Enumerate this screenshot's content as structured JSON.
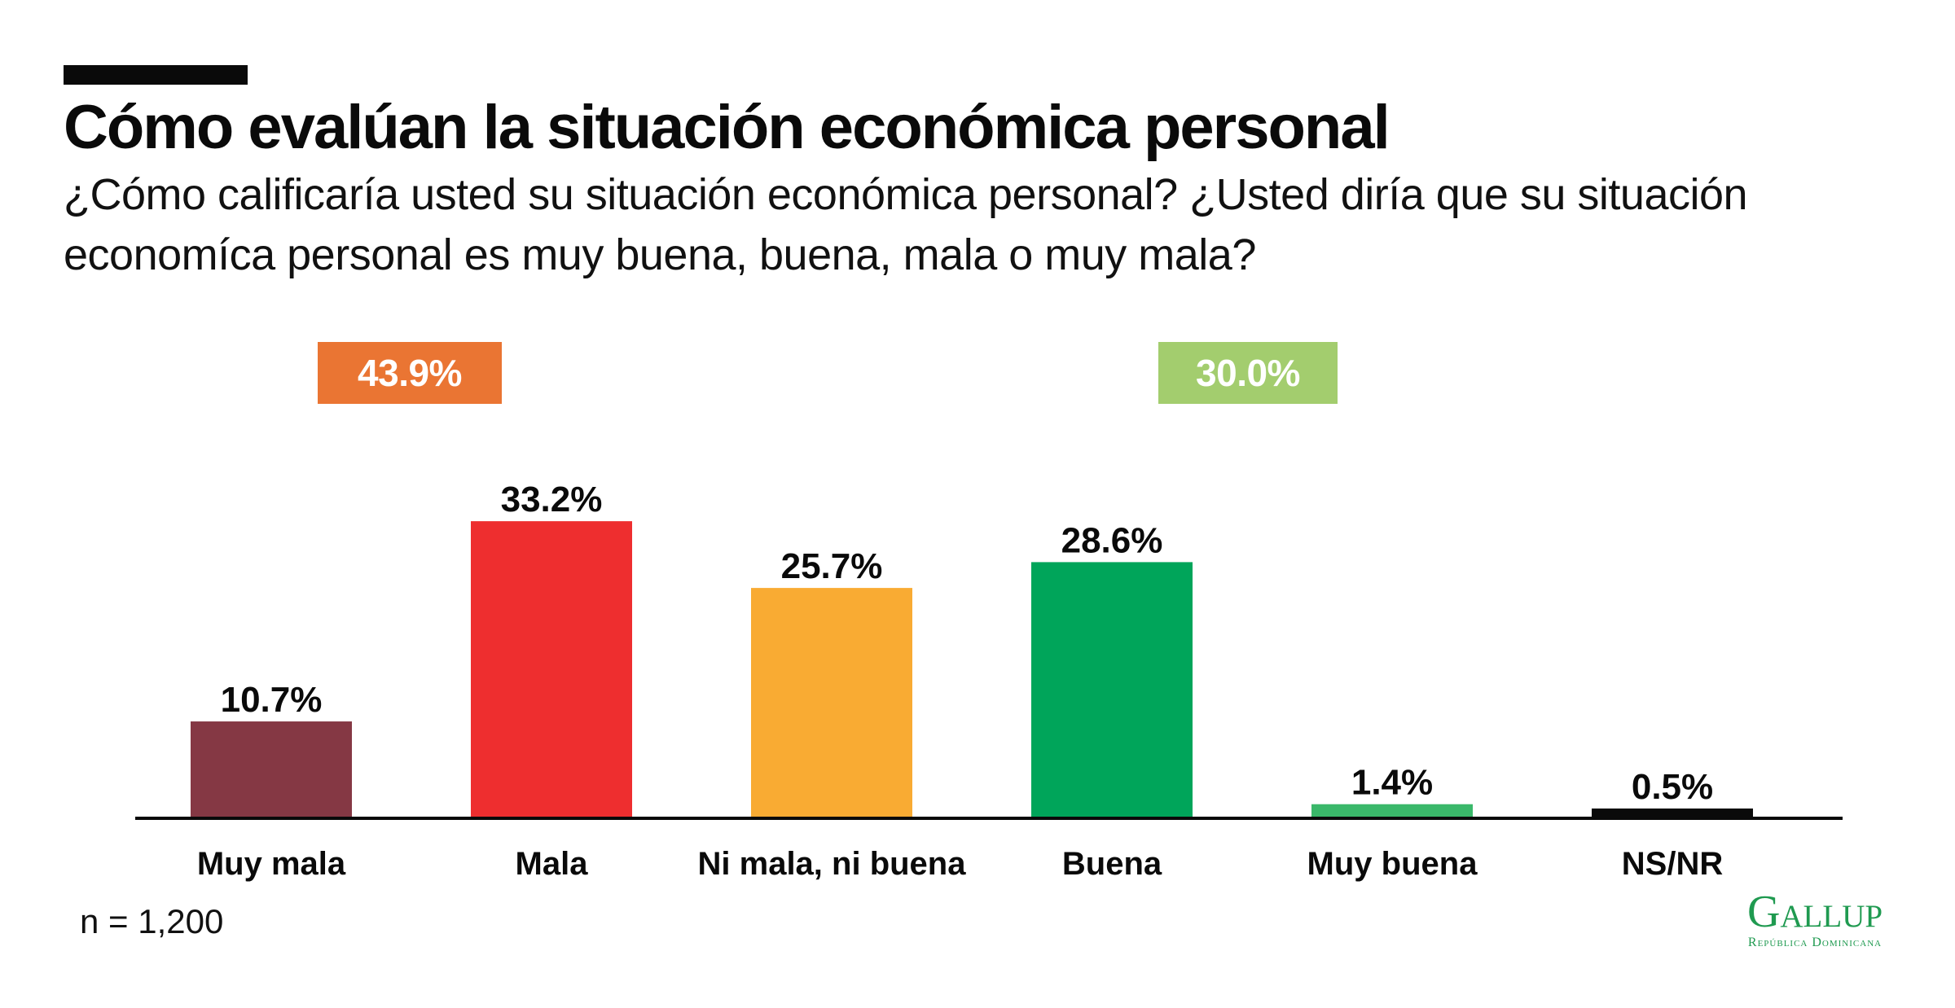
{
  "header": {
    "title": "Cómo evalúan la situación económica personal",
    "subtitle": "¿Cómo calificaría usted su situación económica personal? ¿Usted diría que su situación economíca personal es muy buena, buena, mala o muy mala?"
  },
  "groups": {
    "negative": {
      "label": "43.9%",
      "value": 43.9,
      "color": "#ea7533"
    },
    "positive": {
      "label": "30.0%",
      "value": 30.0,
      "color": "#a3cd6e"
    }
  },
  "chart_data": {
    "type": "bar",
    "categories": [
      "Muy mala",
      "Mala",
      "Ni mala, ni buena",
      "Buena",
      "Muy buena",
      "NS/NR"
    ],
    "values": [
      10.7,
      33.2,
      25.7,
      28.6,
      1.4,
      0.5
    ],
    "value_labels": [
      "10.7%",
      "33.2%",
      "25.7%",
      "28.6%",
      "1.4%",
      "0.5%"
    ],
    "colors": [
      "#853844",
      "#ee2e2f",
      "#f9ab33",
      "#00a55a",
      "#3ab86a",
      "#0a0a0a"
    ],
    "title": "Cómo evalúan la situación económica personal",
    "xlabel": "",
    "ylabel": "",
    "ylim": [
      0,
      35
    ],
    "grid": false,
    "legend": "none"
  },
  "footer": {
    "sample": "n = 1,200",
    "logo_main": "Gallup",
    "logo_sub": "República Dominicana"
  }
}
